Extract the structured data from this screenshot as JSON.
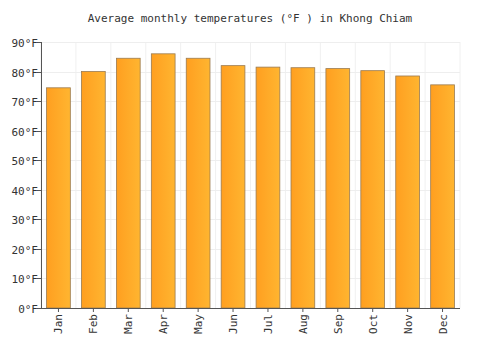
{
  "chart_data": {
    "type": "bar",
    "title": "Average monthly temperatures (°F ) in Khong Chiam",
    "categories": [
      "Jan",
      "Feb",
      "Mar",
      "Apr",
      "May",
      "Jun",
      "Jul",
      "Aug",
      "Sep",
      "Oct",
      "Nov",
      "Dec"
    ],
    "values": [
      74.5,
      80,
      84.5,
      86,
      84.5,
      82,
      81.5,
      81.3,
      81,
      80.3,
      78.5,
      75.5
    ],
    "color": "#ffb530",
    "ylim": [
      0,
      90
    ],
    "yticks": [
      {
        "value": 0,
        "label": "0°F"
      },
      {
        "value": 10,
        "label": "10°F"
      },
      {
        "value": 20,
        "label": "20°F"
      },
      {
        "value": 30,
        "label": "30°F"
      },
      {
        "value": 40,
        "label": "40°F"
      },
      {
        "value": 50,
        "label": "50°F"
      },
      {
        "value": 60,
        "label": "60°F"
      },
      {
        "value": 70,
        "label": "70°F"
      },
      {
        "value": 80,
        "label": "80°F"
      },
      {
        "value": 90,
        "label": "90°F"
      }
    ],
    "grid": true
  }
}
